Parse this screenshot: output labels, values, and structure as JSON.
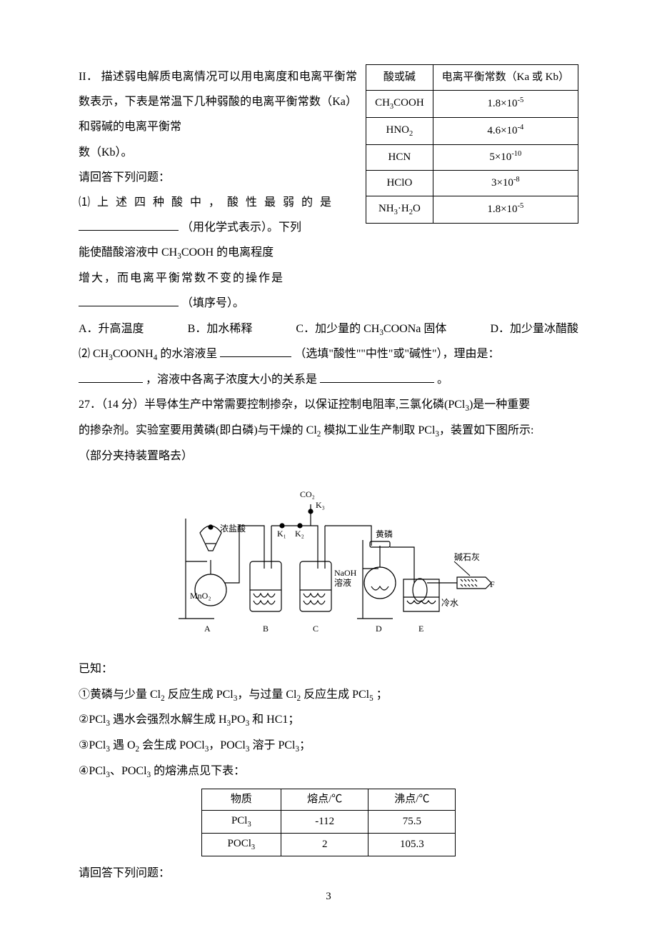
{
  "intro": {
    "part_label": "II．",
    "sentence1": "描述弱电解质电离情况可以用电离度和电离平衡常数表示，下表是常温下几种弱酸的电离平衡常数（Ka）和弱碱的电离平衡常",
    "sentence2": "数（Kb）。",
    "ask": "请回答下列问题：",
    "q1a": "⑴ 上 述 四 种 酸 中 ， 酸 性 最 弱 的 是",
    "q1b_suffix": "（用化学式表示）。下列",
    "q1c": "能使醋酸溶液中 CH",
    "q1c_sub": "3",
    "q1c_after": "COOH  的电离程度",
    "q1d": "增大，而电离平衡常数不变的操作是",
    "q1e_suffix": "（填序号）。"
  },
  "table1": {
    "h1": "酸或碱",
    "h2": "电离平衡常数（Ka 或 Kb）",
    "rows": [
      {
        "f": "CH<span class='sub'>3</span>COOH",
        "k": "1.8×10<span class='sup'>-5</span>"
      },
      {
        "f": "HNO<span class='sub'>2</span>",
        "k": "4.6×10<span class='sup'>-4</span>"
      },
      {
        "f": "HCN",
        "k": "5×10<span class='sup'>-10</span>"
      },
      {
        "f": "HClO",
        "k": "3×10<span class='sup'>-8</span>"
      },
      {
        "f": "NH<span class='sub'>3</span>·H<span class='sub'>2</span>O",
        "k": "1.8×10<span class='sup'>-5</span>"
      }
    ]
  },
  "options": {
    "A": "A．升高温度",
    "B": "B．加水稀释",
    "C": "C．加少量的 CH",
    "C_sub": "3",
    "C_after": "COONa 固体",
    "D": "D．加少量冰醋酸"
  },
  "q2": {
    "prefix": "⑵ CH",
    "sub1": "3",
    "mid1": "COONH",
    "sub2": "4",
    "mid2": " 的水溶液呈",
    "hint": "（选填\"酸性\"\"中性\"或\"碱性\"），理由是：",
    "line2_mid": "，溶液中各离子浓度大小的关系是",
    "line2_end": "。"
  },
  "q27": {
    "head": "27．（14 分）半导体生产中常需要控制掺杂，以保证控制电阻率,三氯化磷(PCl",
    "sub1": "3",
    "head2": ")是一种重要",
    "line2a": "的掺杂剂。实验室要用黄磷(即白磷)与干燥的 Cl",
    "sub2": "2",
    "line2b": " 模拟工业生产制取 PCl",
    "sub3": "3",
    "line2c": "，装置如下图所示:",
    "line3": "（部分夹持装置略去）"
  },
  "diagram": {
    "labels": {
      "co2": "CO₂",
      "k3": "K₃",
      "k1": "K₁",
      "k2": "K₂",
      "conc": "浓盐酸",
      "mno2": "MnO₂",
      "naoh1": "NaOH",
      "naoh2": "溶液",
      "yp": "黄磷",
      "lime": "碱石灰",
      "cold": "冷水",
      "A": "A",
      "B": "B",
      "C": "C",
      "D": "D",
      "E": "E",
      "F": "F"
    },
    "colors": {
      "stroke": "#000000",
      "fill_liquid": "#ffffff"
    }
  },
  "known": {
    "header": "已知：",
    "i1": "①黄磷与少量 Cl<span class='sub'>2</span> 反应生成 PCl<span class='sub'>3</span>，与过量 Cl<span class='sub'>2</span> 反应生成 PCl<span class='sub'>5</span>  ；",
    "i2": "②PCl<span class='sub'>3</span> 遇水会强烈水解生成  H<span class='sub'>3</span>PO<span class='sub'>3</span> 和 HC1；",
    "i3": "③PCl<span class='sub'>3</span> 遇 O<span class='sub'>2</span> 会生成 POCl<span class='sub'>3</span>，POCl<span class='sub'>3</span> 溶于 PCl<span class='sub'>3</span>；",
    "i4": "④PCl<span class='sub'>3</span>、POCl<span class='sub'>3</span> 的熔沸点见下表："
  },
  "table2": {
    "h1": "物质",
    "h2": "熔点/℃",
    "h3": "沸点/℃",
    "rows": [
      {
        "s": "PCl<span class='sub'>3</span>",
        "m": "-112",
        "b": "75.5"
      },
      {
        "s": "POCl<span class='sub'>3</span>",
        "m": "2",
        "b": "105.3"
      }
    ]
  },
  "footer_q": "请回答下列问题：",
  "page_number": "3"
}
